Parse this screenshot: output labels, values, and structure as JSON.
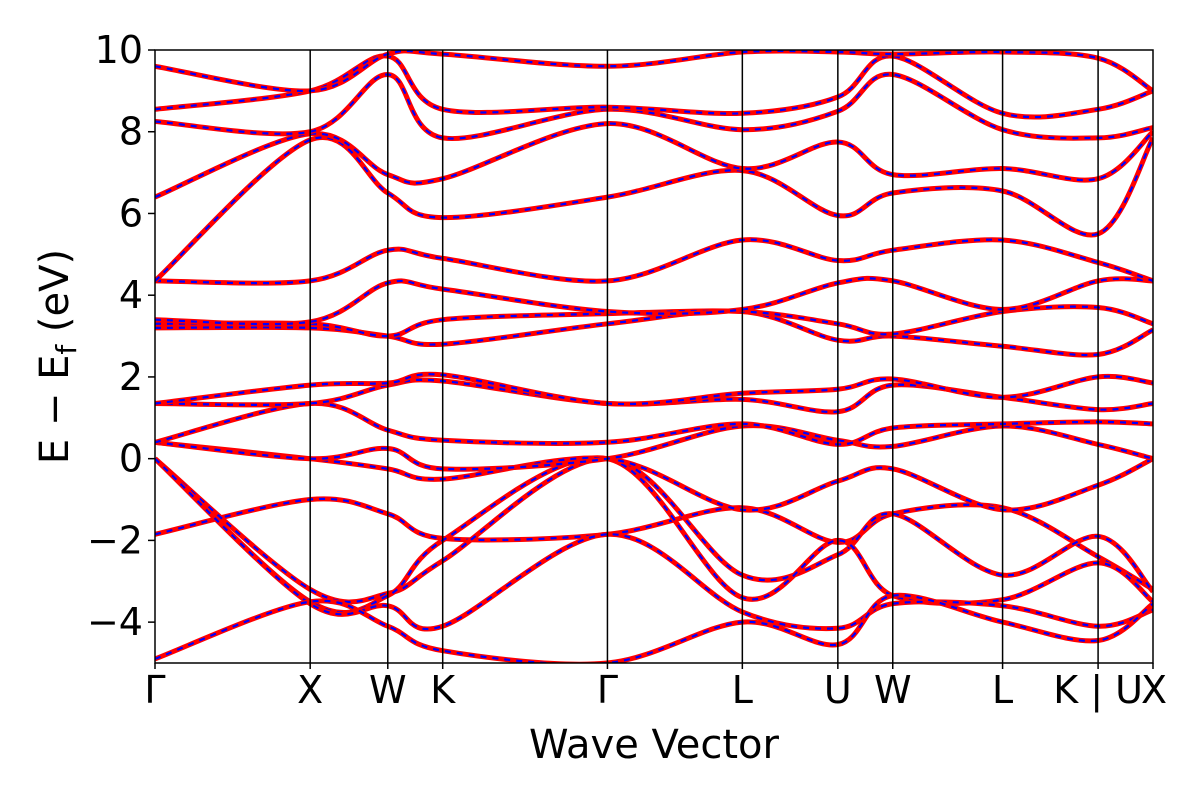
{
  "chart_data": {
    "type": "line",
    "xlabel": "Wave Vector",
    "ylabel": "E − E",
    "ylabel_sub": "f",
    "ylabel_unit": " (eV)",
    "ylim": [
      -5,
      10
    ],
    "yticks": [
      {
        "value": -4,
        "label": "−4"
      },
      {
        "value": -2,
        "label": "−2"
      },
      {
        "value": 0,
        "label": "0"
      },
      {
        "value": 2,
        "label": "2"
      },
      {
        "value": 4,
        "label": "4"
      },
      {
        "value": 6,
        "label": "6"
      },
      {
        "value": 8,
        "label": "8"
      },
      {
        "value": 10,
        "label": "10"
      }
    ],
    "xlim": [
      0,
      12.85
    ],
    "kpoints": [
      {
        "label": "Γ",
        "x": 0.0
      },
      {
        "label": "X",
        "x": 1.3
      },
      {
        "label": "W",
        "x": 1.95
      },
      {
        "label": "K",
        "x": 2.41
      },
      {
        "label": "Γ",
        "x": 3.79
      },
      {
        "label": "L",
        "x": 4.92
      },
      {
        "label": "U",
        "x": 5.72
      },
      {
        "label": "W",
        "x": 6.18
      },
      {
        "label": "L",
        "x": 7.1
      },
      {
        "label": "K | U",
        "x": 7.9
      },
      {
        "label": "X",
        "x": 8.36
      }
    ],
    "grid": false,
    "line_style": {
      "primary_color": "#ff0000",
      "overlay_color": "#0000ff",
      "overlay_dashed": true
    },
    "series": [
      {
        "y": [
          -1.85,
          -1.0,
          -1.35,
          -1.95,
          -1.85,
          -1.2,
          -2.05,
          -1.35,
          -1.2,
          -2.4,
          -3.2
        ]
      },
      {
        "y": [
          0.0,
          -3.2,
          -3.3,
          -2.5,
          0.0,
          -2.85,
          -2.35,
          -1.35,
          -2.85,
          -1.9,
          -3.25
        ]
      },
      {
        "y": [
          0.0,
          -3.5,
          -3.35,
          -2.0,
          0.0,
          -3.4,
          -2.0,
          -3.35,
          -3.45,
          -2.55,
          -3.5
        ]
      },
      {
        "y": [
          0.0,
          -3.55,
          -3.6,
          -4.1,
          -1.85,
          -3.75,
          -4.15,
          -3.55,
          -3.6,
          -4.1,
          -3.7
        ]
      },
      {
        "y": [
          0.4,
          0.0,
          -0.25,
          -0.5,
          0.0,
          -1.25,
          -0.55,
          -0.25,
          -1.25,
          -0.65,
          0.0
        ]
      },
      {
        "y": [
          0.4,
          0.0,
          0.25,
          -0.25,
          0.0,
          0.8,
          0.45,
          0.3,
          0.8,
          0.35,
          0.0
        ]
      },
      {
        "y": [
          0.4,
          1.35,
          0.7,
          0.45,
          0.4,
          0.85,
          0.35,
          0.75,
          0.85,
          0.9,
          0.85
        ]
      },
      {
        "y": [
          1.35,
          1.35,
          1.8,
          1.9,
          1.35,
          1.45,
          1.15,
          1.8,
          1.5,
          1.2,
          1.35
        ]
      },
      {
        "y": [
          1.35,
          1.8,
          1.85,
          2.05,
          1.35,
          1.6,
          1.7,
          1.95,
          1.5,
          2.0,
          1.85
        ]
      },
      {
        "y": [
          3.2,
          3.2,
          3.0,
          2.8,
          3.3,
          3.6,
          2.9,
          3.0,
          2.75,
          2.55,
          3.15
        ]
      },
      {
        "y": [
          3.3,
          3.3,
          3.0,
          3.4,
          3.55,
          3.6,
          3.3,
          3.05,
          3.6,
          3.7,
          3.3
        ]
      },
      {
        "y": [
          3.4,
          3.35,
          4.3,
          4.15,
          3.6,
          3.65,
          4.3,
          4.35,
          3.65,
          4.35,
          4.35
        ]
      },
      {
        "y": [
          4.35,
          4.35,
          5.1,
          4.9,
          4.35,
          5.35,
          4.85,
          5.1,
          5.35,
          4.8,
          4.35
        ]
      },
      {
        "y": [
          4.35,
          7.8,
          6.5,
          5.9,
          6.4,
          7.05,
          5.95,
          6.5,
          6.55,
          5.5,
          7.85
        ]
      },
      {
        "y": [
          6.4,
          7.95,
          6.95,
          6.85,
          8.2,
          7.1,
          7.75,
          6.95,
          7.1,
          6.85,
          8.0
        ]
      },
      {
        "y": [
          8.25,
          8.0,
          9.4,
          7.85,
          8.55,
          8.05,
          8.5,
          9.4,
          8.05,
          7.85,
          8.1
        ]
      },
      {
        "y": [
          8.55,
          9.0,
          9.85,
          8.55,
          8.6,
          8.45,
          8.85,
          9.85,
          8.45,
          8.55,
          9.0
        ]
      },
      {
        "y": [
          9.6,
          9.0,
          9.9,
          9.9,
          9.6,
          9.95,
          9.95,
          9.9,
          9.95,
          9.8,
          9.0
        ]
      },
      {
        "y": [
          -4.9,
          -3.5,
          -4.1,
          -4.7,
          -5.0,
          -4.0,
          -4.55,
          -3.35,
          -4.0,
          -4.45,
          -3.55
        ]
      }
    ]
  }
}
